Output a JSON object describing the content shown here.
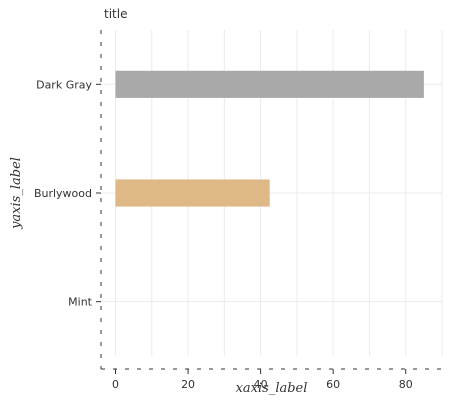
{
  "chart_data": {
    "type": "bar",
    "orientation": "horizontal",
    "title": "title",
    "xlabel": "xaxis_label",
    "ylabel": "yaxis_label",
    "categories": [
      "Mint",
      "Burlywood",
      "Dark Gray"
    ],
    "values": [
      0,
      42.5,
      85
    ],
    "colors": [
      "#98ff98",
      "#deb887",
      "#a9a9a9"
    ],
    "xlim": [
      -4,
      90
    ],
    "xticks": [
      0,
      20,
      40,
      60,
      80
    ],
    "grid": true
  }
}
